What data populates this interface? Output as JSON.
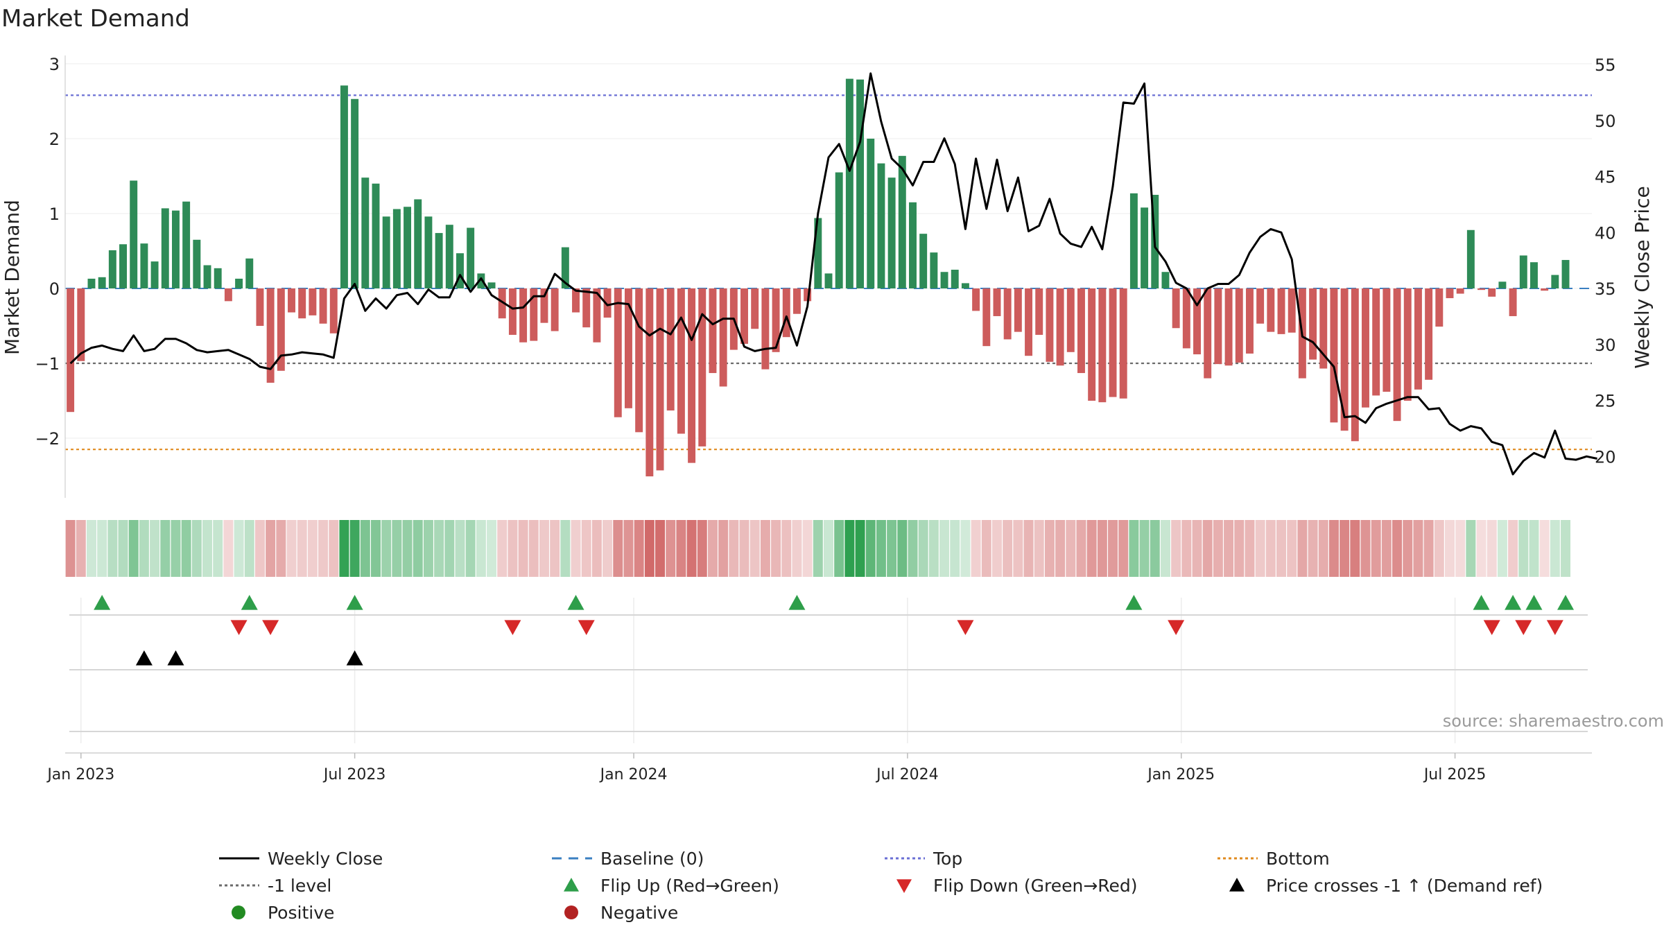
{
  "chart_data": {
    "type": "bar",
    "title": "Market Demand",
    "ylabel_left": "Market Demand",
    "ylabel_right": "Weekly Close Price",
    "ylim_left": [
      -2.8,
      3.1
    ],
    "ylim_right": [
      16,
      56
    ],
    "yticks_left": [
      3,
      2,
      1,
      0,
      -1,
      -2
    ],
    "yticks_left_labels": [
      "3",
      "2",
      "1",
      "0",
      "−1",
      "−2"
    ],
    "yticks_right": [
      55,
      50,
      45,
      40,
      35,
      30,
      25,
      20
    ],
    "yticks_right_labels": [
      "55",
      "50",
      "45",
      "40",
      "35",
      "30",
      "25",
      "20"
    ],
    "x_ticks": [
      "Jan 2023",
      "Jul 2023",
      "Jan 2024",
      "Jul 2024",
      "Jan 2025",
      "Jul 2025"
    ],
    "x_tick_weeks": [
      1,
      27,
      53.5,
      79.5,
      105.5,
      131.5
    ],
    "weeks": 145,
    "demand": [
      -1.65,
      -0.97,
      0.13,
      0.15,
      0.51,
      0.59,
      1.44,
      0.6,
      0.36,
      1.07,
      1.04,
      1.16,
      0.65,
      0.31,
      0.27,
      -0.17,
      0.13,
      0.4,
      -0.5,
      -1.26,
      -1.1,
      -0.32,
      -0.4,
      -0.36,
      -0.47,
      -0.6,
      2.71,
      2.53,
      1.48,
      1.4,
      0.96,
      1.06,
      1.09,
      1.19,
      0.96,
      0.74,
      0.85,
      0.47,
      0.81,
      0.2,
      0.08,
      -0.4,
      -0.62,
      -0.72,
      -0.7,
      -0.46,
      -0.57,
      0.55,
      -0.32,
      -0.52,
      -0.72,
      -0.39,
      -1.72,
      -1.6,
      -1.92,
      -2.51,
      -2.43,
      -1.63,
      -1.94,
      -2.33,
      -2.11,
      -1.13,
      -1.31,
      -0.82,
      -0.74,
      -0.54,
      -1.08,
      -0.85,
      -0.65,
      -0.34,
      -0.17,
      0.94,
      0.2,
      1.55,
      2.8,
      2.79,
      2.0,
      1.67,
      1.48,
      1.77,
      1.15,
      0.73,
      0.48,
      0.22,
      0.25,
      0.07,
      -0.3,
      -0.77,
      -0.37,
      -0.68,
      -0.58,
      -0.9,
      -0.62,
      -0.98,
      -1.03,
      -0.85,
      -1.13,
      -1.5,
      -1.52,
      -1.45,
      -1.47,
      1.27,
      1.08,
      1.25,
      0.22,
      -0.53,
      -0.8,
      -0.88,
      -1.2,
      -1.01,
      -1.03,
      -0.99,
      -0.87,
      -0.47,
      -0.58,
      -0.61,
      -0.59,
      -1.2,
      -0.95,
      -1.07,
      -1.79,
      -1.9,
      -2.04,
      -1.59,
      -1.43,
      -1.38,
      -1.77,
      -1.5,
      -1.35,
      -1.22,
      -0.51,
      -0.13,
      -0.07,
      0.78,
      -0.02,
      -0.11,
      0.09,
      -0.37,
      0.44,
      0.35,
      -0.03,
      0.18,
      0.38
    ],
    "close": [
      28.3,
      29.2,
      29.7,
      29.9,
      29.6,
      29.4,
      30.8,
      29.4,
      29.6,
      30.5,
      30.5,
      30.1,
      29.5,
      29.3,
      29.4,
      29.5,
      29.1,
      28.7,
      28.0,
      27.8,
      29.0,
      29.1,
      29.3,
      29.2,
      29.1,
      28.8,
      34.1,
      35.4,
      33.0,
      34.1,
      33.2,
      34.4,
      34.6,
      33.6,
      34.9,
      34.2,
      34.2,
      36.2,
      34.7,
      35.9,
      34.4,
      33.8,
      33.2,
      33.3,
      34.3,
      34.3,
      36.3,
      35.5,
      34.8,
      34.7,
      34.6,
      33.5,
      33.7,
      33.6,
      31.6,
      30.8,
      31.4,
      30.9,
      32.4,
      30.4,
      32.7,
      31.8,
      32.3,
      32.3,
      29.8,
      29.4,
      29.6,
      29.7,
      32.5,
      29.9,
      33.4,
      41.7,
      46.7,
      47.9,
      45.5,
      48.1,
      54.2,
      49.9,
      46.6,
      45.7,
      44.2,
      46.3,
      46.3,
      48.4,
      46.1,
      40.3,
      46.6,
      42.1,
      46.5,
      41.9,
      44.9,
      40.1,
      40.6,
      43.0,
      39.9,
      39.0,
      38.7,
      40.5,
      38.5,
      44.1,
      51.6,
      51.5,
      53.3,
      38.7,
      37.4,
      35.5,
      35.0,
      33.5,
      35.0,
      35.4,
      35.4,
      36.2,
      38.2,
      39.6,
      40.3,
      40.0,
      37.6,
      30.7,
      30.2,
      29.1,
      28.0,
      23.5,
      23.6,
      23.0,
      24.3,
      24.7,
      25.0,
      25.3,
      25.3,
      24.2,
      24.3,
      22.9,
      22.3,
      22.7,
      22.5,
      21.3,
      21.0,
      18.4,
      19.6,
      20.3,
      19.9,
      22.3,
      19.8,
      19.7,
      20.0,
      19.8
    ],
    "reference_lines": {
      "top": {
        "value": 2.58,
        "label": "Top",
        "color": "#6a6fd4"
      },
      "minus_one": {
        "value": -1,
        "label": "-1 level",
        "color": "#6b6b6b"
      },
      "bottom": {
        "value": -2.15,
        "label": "Bottom",
        "color": "#e08a1e"
      },
      "baseline": {
        "value": 0,
        "label": "Baseline (0)",
        "color": "#3a7fc1"
      }
    },
    "flip_up_weeks": [
      3,
      17,
      27,
      48,
      69,
      101,
      134,
      137,
      139,
      142
    ],
    "flip_down_weeks": [
      16,
      19,
      42,
      49,
      85,
      105,
      135,
      138,
      141
    ],
    "price_cross_weeks": [
      7,
      10,
      27
    ],
    "colors": {
      "positive": "#2e8b57",
      "negative": "#cd5c5c",
      "close_line": "#000000",
      "flip_up": "#2e9e4a",
      "flip_down": "#d62828",
      "price_cross": "#000000",
      "legend_positive": "#228b22",
      "legend_negative": "#b22222"
    },
    "legend": [
      {
        "id": "close",
        "label": "Weekly Close"
      },
      {
        "id": "baseline",
        "label": "Baseline (0)"
      },
      {
        "id": "top",
        "label": "Top"
      },
      {
        "id": "bottom",
        "label": "Bottom"
      },
      {
        "id": "minus_one",
        "label": "-1 level"
      },
      {
        "id": "flip_up",
        "label": "Flip Up (Red→Green)"
      },
      {
        "id": "flip_down",
        "label": "Flip Down (Green→Red)"
      },
      {
        "id": "price_cross",
        "label": "Price crosses -1 ↑ (Demand ref)"
      },
      {
        "id": "positive",
        "label": "Positive"
      },
      {
        "id": "negative",
        "label": "Negative"
      }
    ],
    "source": "source: sharemaestro.com"
  }
}
